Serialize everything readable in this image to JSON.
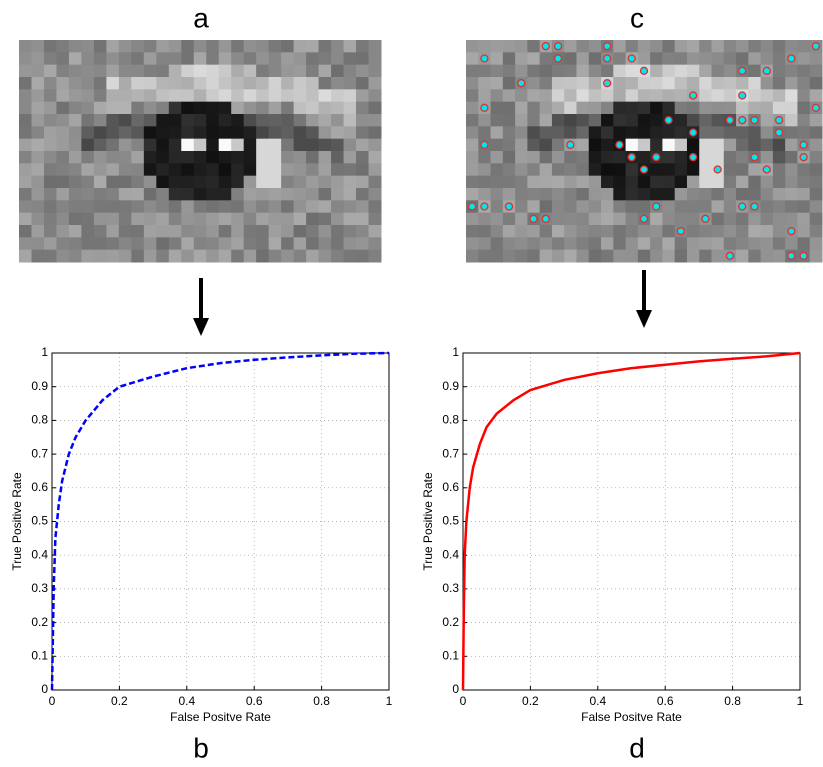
{
  "image_labels": [
    "a",
    "c"
  ],
  "chart_data": [
    {
      "type": "line",
      "panel_label": "b",
      "xlabel": "False Positve Rate",
      "ylabel": "True Positive Rate",
      "xlim": [
        0,
        1
      ],
      "ylim": [
        0,
        1
      ],
      "xticks": [
        0,
        0.2,
        0.4,
        0.6,
        0.8,
        1
      ],
      "yticks": [
        0,
        0.1,
        0.2,
        0.3,
        0.4,
        0.5,
        0.6,
        0.7,
        0.8,
        0.9,
        1
      ],
      "grid": true,
      "line_style": "dashed",
      "series": [
        {
          "color": "#0000ff",
          "x": [
            0,
            0.005,
            0.01,
            0.02,
            0.03,
            0.05,
            0.07,
            0.1,
            0.15,
            0.2,
            0.3,
            0.4,
            0.5,
            0.6,
            0.7,
            0.8,
            0.9,
            1
          ],
          "values": [
            0,
            0.3,
            0.45,
            0.55,
            0.62,
            0.7,
            0.75,
            0.8,
            0.86,
            0.9,
            0.93,
            0.955,
            0.97,
            0.98,
            0.987,
            0.993,
            0.998,
            1
          ]
        }
      ]
    },
    {
      "type": "line",
      "panel_label": "d",
      "xlabel": "False Positve Rate",
      "ylabel": "True Positive Rate",
      "xlim": [
        0,
        1
      ],
      "ylim": [
        0,
        1
      ],
      "xticks": [
        0,
        0.2,
        0.4,
        0.6,
        0.8,
        1
      ],
      "yticks": [
        0,
        0.1,
        0.2,
        0.3,
        0.4,
        0.5,
        0.6,
        0.7,
        0.8,
        0.9,
        1
      ],
      "grid": true,
      "line_style": "solid",
      "series": [
        {
          "color": "#ff0000",
          "x": [
            0,
            0.002,
            0.005,
            0.01,
            0.02,
            0.03,
            0.05,
            0.07,
            0.1,
            0.15,
            0.2,
            0.3,
            0.4,
            0.5,
            0.6,
            0.7,
            0.8,
            0.9,
            1
          ],
          "values": [
            0,
            0.2,
            0.4,
            0.5,
            0.6,
            0.66,
            0.73,
            0.78,
            0.82,
            0.86,
            0.89,
            0.92,
            0.94,
            0.955,
            0.965,
            0.975,
            0.983,
            0.99,
            1
          ]
        }
      ]
    }
  ]
}
